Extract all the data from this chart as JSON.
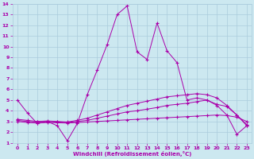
{
  "xlabel": "Windchill (Refroidissement éolien,°C)",
  "bg_color": "#cce8f0",
  "grid_color": "#aaccdd",
  "line_color": "#aa00aa",
  "xlim": [
    -0.5,
    23.5
  ],
  "ylim": [
    1,
    14
  ],
  "xticks": [
    0,
    1,
    2,
    3,
    4,
    5,
    6,
    7,
    8,
    9,
    10,
    11,
    12,
    13,
    14,
    15,
    16,
    17,
    18,
    19,
    20,
    21,
    22,
    23
  ],
  "yticks": [
    1,
    2,
    3,
    4,
    5,
    6,
    7,
    8,
    9,
    10,
    11,
    12,
    13,
    14
  ],
  "line1_x": [
    0,
    1,
    2,
    3,
    4,
    5,
    6,
    7,
    8,
    9,
    10,
    11,
    12,
    13,
    14,
    15,
    16,
    17,
    18,
    19,
    20,
    21,
    22,
    23
  ],
  "line1_y": [
    5.0,
    3.8,
    2.8,
    3.0,
    2.6,
    1.2,
    2.8,
    5.5,
    7.8,
    10.2,
    13.0,
    13.8,
    9.5,
    8.8,
    12.2,
    9.6,
    8.5,
    5.0,
    5.2,
    5.0,
    4.5,
    3.6,
    1.8,
    2.6
  ],
  "line2_x": [
    0,
    1,
    2,
    3,
    4,
    5,
    6,
    7,
    8,
    9,
    10,
    11,
    12,
    13,
    14,
    15,
    16,
    17,
    18,
    19,
    20,
    21,
    22,
    23
  ],
  "line2_y": [
    3.0,
    2.9,
    2.85,
    2.9,
    2.88,
    2.85,
    2.9,
    2.95,
    3.0,
    3.05,
    3.1,
    3.15,
    3.2,
    3.25,
    3.3,
    3.35,
    3.4,
    3.45,
    3.5,
    3.55,
    3.6,
    3.55,
    3.4,
    3.0
  ],
  "line3_x": [
    0,
    1,
    2,
    3,
    4,
    5,
    6,
    7,
    8,
    9,
    10,
    11,
    12,
    13,
    14,
    15,
    16,
    17,
    18,
    19,
    20,
    21,
    22,
    23
  ],
  "line3_y": [
    3.1,
    3.0,
    2.95,
    3.0,
    2.95,
    2.9,
    3.0,
    3.1,
    3.3,
    3.5,
    3.7,
    3.9,
    4.0,
    4.15,
    4.3,
    4.5,
    4.6,
    4.7,
    4.85,
    5.0,
    4.6,
    4.4,
    3.6,
    2.6
  ],
  "line4_x": [
    0,
    1,
    2,
    3,
    4,
    5,
    6,
    7,
    8,
    9,
    10,
    11,
    12,
    13,
    14,
    15,
    16,
    17,
    18,
    19,
    20,
    21,
    22,
    23
  ],
  "line4_y": [
    3.2,
    3.1,
    3.0,
    3.05,
    3.0,
    2.95,
    3.1,
    3.3,
    3.6,
    3.9,
    4.2,
    4.5,
    4.7,
    4.9,
    5.1,
    5.3,
    5.4,
    5.5,
    5.6,
    5.5,
    5.2,
    4.5,
    3.6,
    2.7
  ]
}
